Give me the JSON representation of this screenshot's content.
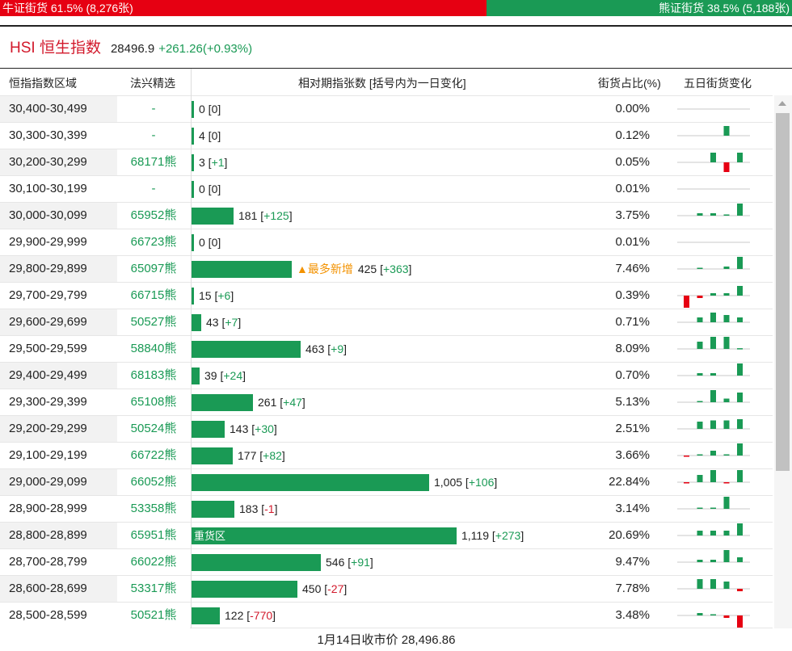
{
  "ratio": {
    "bull_label": "牛证街货 61.5% (8,276张)",
    "bear_label": "熊证街货 38.5% (5,188张)",
    "bull_share": 0.615,
    "bull_color": "#e60012",
    "bear_color": "#1a9a55"
  },
  "header": {
    "title": "HSI 恒生指数",
    "value": "28496.9",
    "change": "+261.26(+0.93%)"
  },
  "columns": {
    "range": "恒指指数区域",
    "pick": "法兴精选",
    "volume": "相对期指张数 [括号内为一日变化]",
    "share": "街货占比(%)",
    "trend": "五日街货变化"
  },
  "rows": [
    {
      "range": "30,400-30,499",
      "pick": "-",
      "count": "0",
      "count_value": 0,
      "delta": "0",
      "share": "0.00%",
      "spark": [
        0,
        0,
        0,
        0,
        0
      ]
    },
    {
      "range": "30,300-30,399",
      "pick": "-",
      "count": "4",
      "count_value": 4,
      "delta": "0",
      "share": "0.12%",
      "spark": [
        0,
        0,
        0,
        4,
        0
      ]
    },
    {
      "range": "30,200-30,299",
      "pick": "68171熊",
      "count": "3",
      "count_value": 3,
      "delta": "+1",
      "share": "0.05%",
      "spark": [
        0,
        0,
        4,
        -4,
        4
      ]
    },
    {
      "range": "30,100-30,199",
      "pick": "-",
      "count": "0",
      "count_value": 0,
      "delta": "0",
      "share": "0.01%",
      "spark": [
        0,
        0,
        0,
        0,
        0
      ]
    },
    {
      "range": "30,000-30,099",
      "pick": "65952熊",
      "count": "181",
      "count_value": 181,
      "delta": "+125",
      "share": "3.75%",
      "spark": [
        0,
        1,
        1,
        0.5,
        5
      ]
    },
    {
      "range": "29,900-29,999",
      "pick": "66723熊",
      "count": "0",
      "count_value": 0,
      "delta": "0",
      "share": "0.01%",
      "spark": [
        0,
        0,
        0,
        0,
        0
      ]
    },
    {
      "range": "29,800-29,899",
      "pick": "65097熊",
      "count": "425",
      "count_value": 425,
      "delta": "+363",
      "badge": "▲最多新增",
      "share": "7.46%",
      "spark": [
        0,
        0.5,
        0,
        1,
        5
      ]
    },
    {
      "range": "29,700-29,799",
      "pick": "66715熊",
      "count": "15",
      "count_value": 15,
      "delta": "+6",
      "share": "0.39%",
      "spark": [
        -5,
        -1,
        1,
        1,
        4
      ]
    },
    {
      "range": "29,600-29,699",
      "pick": "50527熊",
      "count": "43",
      "count_value": 43,
      "delta": "+7",
      "share": "0.71%",
      "spark": [
        0,
        2,
        4,
        3,
        2
      ]
    },
    {
      "range": "29,500-29,599",
      "pick": "58840熊",
      "count": "463",
      "count_value": 463,
      "delta": "+9",
      "share": "8.09%",
      "spark": [
        0,
        3,
        5,
        5,
        0.3
      ]
    },
    {
      "range": "29,400-29,499",
      "pick": "68183熊",
      "count": "39",
      "count_value": 39,
      "delta": "+24",
      "share": "0.70%",
      "spark": [
        0,
        1,
        1,
        0,
        5
      ]
    },
    {
      "range": "29,300-29,399",
      "pick": "65108熊",
      "count": "261",
      "count_value": 261,
      "delta": "+47",
      "share": "5.13%",
      "spark": [
        0,
        0.5,
        5,
        1.5,
        4
      ]
    },
    {
      "range": "29,200-29,299",
      "pick": "50524熊",
      "count": "143",
      "count_value": 143,
      "delta": "+30",
      "share": "2.51%",
      "spark": [
        0,
        3,
        3.5,
        3.5,
        4
      ]
    },
    {
      "range": "29,100-29,199",
      "pick": "66722熊",
      "count": "177",
      "count_value": 177,
      "delta": "+82",
      "share": "3.66%",
      "spark": [
        -0.5,
        0.5,
        2,
        0.5,
        5
      ]
    },
    {
      "range": "29,000-29,099",
      "pick": "66052熊",
      "count": "1,005",
      "count_value": 1005,
      "delta": "+106",
      "share": "22.84%",
      "spark": [
        -0.5,
        3,
        5,
        -0.5,
        5
      ]
    },
    {
      "range": "28,900-28,999",
      "pick": "53358熊",
      "count": "183",
      "count_value": 183,
      "delta": "-1",
      "share": "3.14%",
      "spark": [
        0,
        0.5,
        0.5,
        5,
        0
      ]
    },
    {
      "range": "28,800-28,899",
      "pick": "65951熊",
      "count": "1,119",
      "count_value": 1119,
      "delta": "+273",
      "bar_label": "重货区",
      "share": "20.69%",
      "spark": [
        0,
        2,
        2,
        2,
        5
      ]
    },
    {
      "range": "28,700-28,799",
      "pick": "66022熊",
      "count": "546",
      "count_value": 546,
      "delta": "+91",
      "share": "9.47%",
      "spark": [
        0,
        1,
        1,
        5,
        2
      ]
    },
    {
      "range": "28,600-28,699",
      "pick": "53317熊",
      "count": "450",
      "count_value": 450,
      "delta": "-27",
      "share": "7.78%",
      "spark": [
        0,
        4,
        4,
        3,
        -1
      ]
    },
    {
      "range": "28,500-28,599",
      "pick": "50521熊",
      "count": "122",
      "count_value": 122,
      "delta": "-770",
      "share": "3.48%",
      "spark": [
        0,
        1,
        0.5,
        -1,
        -5
      ]
    }
  ],
  "footer": {
    "close_text": "1月14日收市价 28,496.86"
  }
}
